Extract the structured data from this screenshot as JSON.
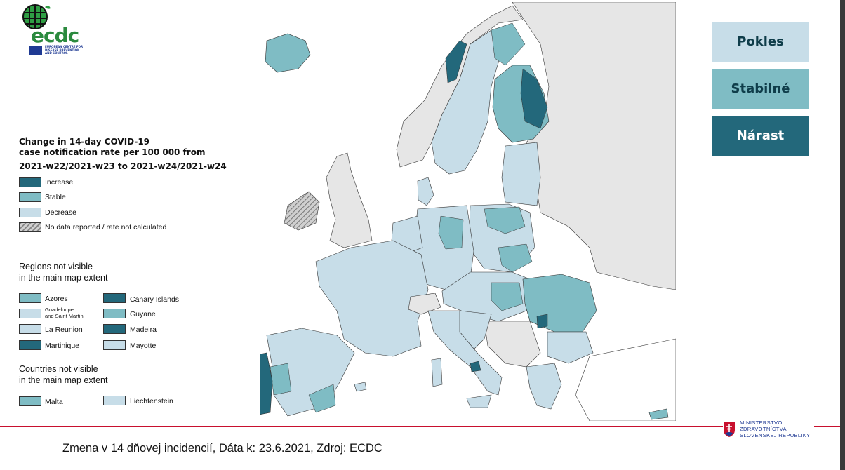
{
  "logo": {
    "name": "ecdc",
    "subtitle": "EUROPEAN CENTRE FOR DISEASE PREVENTION AND CONTROL"
  },
  "legend": {
    "title_line1": "Change in 14-day COVID-19",
    "title_line2": "case notification rate per 100 000 from",
    "title_line3": "2021-w22/2021-w23 to 2021-w24/2021-w24",
    "items": [
      {
        "label": "Increase",
        "color": "#23687b"
      },
      {
        "label": "Stable",
        "color": "#7fbcc4"
      },
      {
        "label": "Decrease",
        "color": "#c7dde8"
      },
      {
        "label": "No data reported / rate not calculated",
        "color": "hatched"
      }
    ]
  },
  "regions_header": {
    "line1": "Regions not visible",
    "line2": "in the main map extent"
  },
  "regions": [
    {
      "label": "Azores",
      "color": "#7fbcc4"
    },
    {
      "label": "Canary Islands",
      "color": "#23687b"
    },
    {
      "label_line1": "Guadeloupe",
      "label_line2": "and Saint Martin",
      "color": "#c7dde8"
    },
    {
      "label": "Guyane",
      "color": "#7fbcc4"
    },
    {
      "label": "La Reunion",
      "color": "#c7dde8"
    },
    {
      "label": "Madeira",
      "color": "#23687b"
    },
    {
      "label": "Martinique",
      "color": "#23687b"
    },
    {
      "label": "Mayotte",
      "color": "#c7dde8"
    }
  ],
  "countries_header": {
    "line1": "Countries not visible",
    "line2": "in the main map extent"
  },
  "countries": [
    {
      "label": "Malta",
      "color": "#7fbcc4"
    },
    {
      "label": "Liechtenstein",
      "color": "#c7dde8"
    }
  ],
  "categories": [
    {
      "label": "Pokles",
      "color": "#c7dde8"
    },
    {
      "label": "Stabilné",
      "color": "#7fbcc4"
    },
    {
      "label": "Nárast",
      "color": "#23687b"
    }
  ],
  "caption": "Zmena v 14 dňovej incidencií, Dáta k: 23.6.2021, Zdroj: ECDC",
  "ministry": {
    "line1": "MINISTERSTVO",
    "line2": "ZDRAVOTNÍCTVA",
    "line3": "SLOVENSKEJ REPUBLIKY"
  },
  "colors": {
    "increase": "#23687b",
    "stable": "#7fbcc4",
    "decrease": "#c7dde8",
    "non_eu": "#e6e6e6",
    "accent_red": "#c8102e"
  }
}
